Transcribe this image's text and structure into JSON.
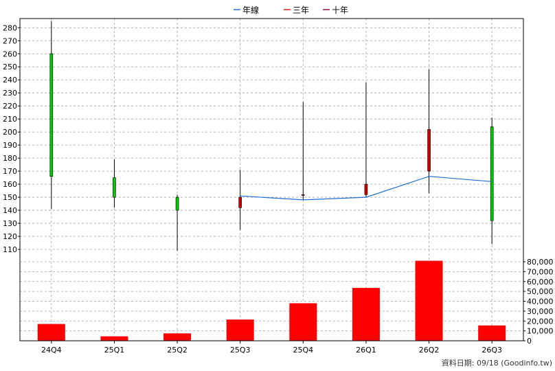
{
  "chart_data": {
    "type": "candlestick+bar",
    "legend": [
      {
        "label": "年線",
        "color": "#1f6fd6"
      },
      {
        "label": "三年",
        "color": "#d62020"
      },
      {
        "label": "十年",
        "color": "#8b1a3a"
      }
    ],
    "categories": [
      "24Q4",
      "25Q1",
      "25Q2",
      "25Q3",
      "25Q4",
      "26Q1",
      "26Q2",
      "26Q3"
    ],
    "price_axis": {
      "ylim": [
        100,
        287
      ],
      "ticks": [
        110,
        120,
        130,
        140,
        150,
        160,
        170,
        180,
        190,
        200,
        210,
        220,
        230,
        240,
        250,
        260,
        270,
        280
      ]
    },
    "candles": [
      {
        "open": 260,
        "close": 166,
        "high": 285,
        "low": 141
      },
      {
        "open": 165,
        "close": 150,
        "high": 179,
        "low": 142
      },
      {
        "open": 150,
        "close": 140,
        "high": 152,
        "low": 109
      },
      {
        "open": 142,
        "close": 150,
        "high": 171,
        "low": 125
      },
      {
        "open": 152,
        "close": 152,
        "high": 223,
        "low": 148
      },
      {
        "open": 152,
        "close": 160,
        "high": 238,
        "low": 150
      },
      {
        "open": 170,
        "close": 202,
        "high": 248,
        "low": 153
      },
      {
        "open": 204,
        "close": 132,
        "high": 211,
        "low": 114
      }
    ],
    "candle_colors": {
      "up": "#cc0000",
      "down": "#00cc00"
    },
    "year_line": {
      "name": "年線",
      "start_index": 3,
      "values": [
        151,
        148,
        150,
        166,
        162
      ]
    },
    "volume_axis": {
      "ylim": [
        0,
        80000
      ],
      "ticks": [
        0,
        10000,
        20000,
        30000,
        40000,
        50000,
        60000,
        70000,
        80000
      ],
      "tick_labels": [
        "0",
        "10,000",
        "20,000",
        "30,000",
        "40,000",
        "50,000",
        "60,000",
        "70,000",
        "80,000"
      ]
    },
    "volumes": [
      17000,
      4500,
      7500,
      21500,
      38000,
      53500,
      81000,
      15500
    ],
    "volume_color": "#ff0000",
    "grid": true
  },
  "footer": {
    "text": "資料日期: 09/18  (Goodinfo.tw)"
  }
}
